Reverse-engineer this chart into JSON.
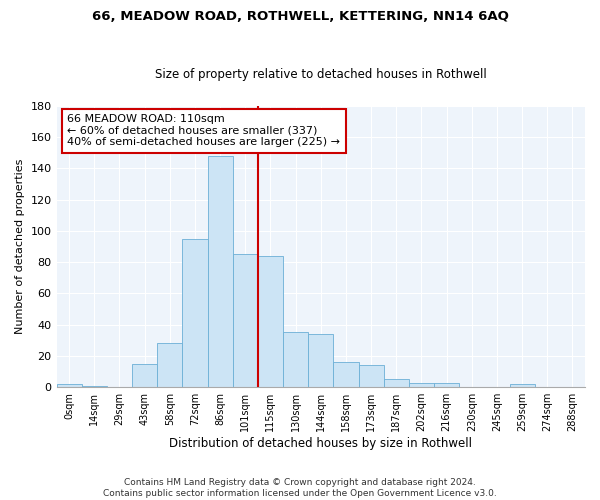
{
  "title1": "66, MEADOW ROAD, ROTHWELL, KETTERING, NN14 6AQ",
  "title2": "Size of property relative to detached houses in Rothwell",
  "xlabel": "Distribution of detached houses by size in Rothwell",
  "ylabel": "Number of detached properties",
  "bar_labels": [
    "0sqm",
    "14sqm",
    "29sqm",
    "43sqm",
    "58sqm",
    "72sqm",
    "86sqm",
    "101sqm",
    "115sqm",
    "130sqm",
    "144sqm",
    "158sqm",
    "173sqm",
    "187sqm",
    "202sqm",
    "216sqm",
    "230sqm",
    "245sqm",
    "259sqm",
    "274sqm",
    "288sqm"
  ],
  "bar_values": [
    2,
    1,
    0,
    15,
    28,
    95,
    148,
    85,
    84,
    35,
    34,
    16,
    14,
    5,
    3,
    3,
    0,
    0,
    2,
    0,
    0
  ],
  "property_line_idx": 7.5,
  "annotation_title": "66 MEADOW ROAD: 110sqm",
  "annotation_line1": "← 60% of detached houses are smaller (337)",
  "annotation_line2": "40% of semi-detached houses are larger (225) →",
  "bar_color": "#cce4f5",
  "bar_edgecolor": "#6bafd6",
  "background_color": "#eef4fb",
  "property_line_color": "#cc0000",
  "annotation_box_color": "#cc0000",
  "grid_color": "#ffffff",
  "footer1": "Contains HM Land Registry data © Crown copyright and database right 2024.",
  "footer2": "Contains public sector information licensed under the Open Government Licence v3.0.",
  "ylim": [
    0,
    180
  ],
  "yticks": [
    0,
    20,
    40,
    60,
    80,
    100,
    120,
    140,
    160,
    180
  ]
}
